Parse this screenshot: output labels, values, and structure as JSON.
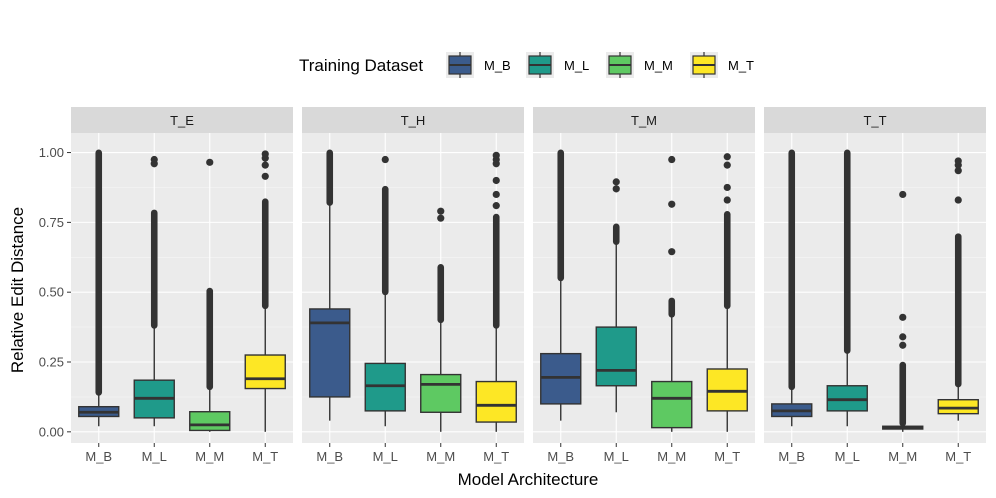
{
  "chart_data": {
    "type": "boxplot",
    "xlabel": "Model Architecture",
    "ylabel": "Relative Edit Distance",
    "ylim": [
      -0.04,
      1.07
    ],
    "yticks": [
      0.0,
      0.25,
      0.5,
      0.75,
      1.0
    ],
    "ytick_labels": [
      "0.00",
      "0.25",
      "0.50",
      "0.75",
      "1.00"
    ],
    "categories": [
      "M_B",
      "M_L",
      "M_M",
      "M_T"
    ],
    "legend": {
      "title": "Training Dataset",
      "position": "top",
      "entries": [
        "M_B",
        "M_L",
        "M_M",
        "M_T"
      ]
    },
    "colors": {
      "M_B": "#3b5b8c",
      "M_L": "#1f9a8a",
      "M_M": "#5ec962",
      "M_T": "#fde725"
    },
    "facets": [
      {
        "label": "T_E",
        "boxes": [
          {
            "category": "M_B",
            "whisker_low": 0.02,
            "q1": 0.055,
            "median": 0.07,
            "q3": 0.09,
            "whisker_high": 0.14,
            "outlier_band": [
              0.14,
              1.0
            ],
            "outliers": []
          },
          {
            "category": "M_L",
            "whisker_low": 0.02,
            "q1": 0.05,
            "median": 0.12,
            "q3": 0.185,
            "whisker_high": 0.38,
            "outlier_band": [
              0.38,
              0.785
            ],
            "outliers": [
              0.96,
              0.975
            ]
          },
          {
            "category": "M_M",
            "whisker_low": 0.0,
            "q1": 0.005,
            "median": 0.025,
            "q3": 0.072,
            "whisker_high": 0.16,
            "outlier_band": [
              0.16,
              0.505
            ],
            "outliers": [
              0.965
            ]
          },
          {
            "category": "M_T",
            "whisker_low": 0.0,
            "q1": 0.155,
            "median": 0.19,
            "q3": 0.275,
            "whisker_high": 0.45,
            "outlier_band": [
              0.45,
              0.825
            ],
            "outliers": [
              0.915,
              0.955,
              0.98,
              0.995
            ]
          }
        ]
      },
      {
        "label": "T_H",
        "boxes": [
          {
            "category": "M_B",
            "whisker_low": 0.04,
            "q1": 0.125,
            "median": 0.39,
            "q3": 0.44,
            "whisker_high": 0.82,
            "outlier_band": [
              0.82,
              1.0
            ],
            "outliers": []
          },
          {
            "category": "M_L",
            "whisker_low": 0.02,
            "q1": 0.075,
            "median": 0.165,
            "q3": 0.245,
            "whisker_high": 0.5,
            "outlier_band": [
              0.5,
              0.87
            ],
            "outliers": [
              0.975
            ]
          },
          {
            "category": "M_M",
            "whisker_low": 0.0,
            "q1": 0.07,
            "median": 0.17,
            "q3": 0.205,
            "whisker_high": 0.4,
            "outlier_band": [
              0.4,
              0.59
            ],
            "outliers": [
              0.765,
              0.79
            ]
          },
          {
            "category": "M_T",
            "whisker_low": 0.0,
            "q1": 0.035,
            "median": 0.095,
            "q3": 0.18,
            "whisker_high": 0.38,
            "outlier_band": [
              0.38,
              0.77
            ],
            "outliers": [
              0.81,
              0.85,
              0.9,
              0.96,
              0.975,
              0.99
            ]
          }
        ]
      },
      {
        "label": "T_M",
        "boxes": [
          {
            "category": "M_B",
            "whisker_low": 0.04,
            "q1": 0.1,
            "median": 0.195,
            "q3": 0.28,
            "whisker_high": 0.55,
            "outlier_band": [
              0.55,
              1.0
            ],
            "outliers": []
          },
          {
            "category": "M_L",
            "whisker_low": 0.07,
            "q1": 0.165,
            "median": 0.22,
            "q3": 0.375,
            "whisker_high": 0.68,
            "outlier_band": [
              0.68,
              0.735
            ],
            "outliers": [
              0.87,
              0.895
            ]
          },
          {
            "category": "M_M",
            "whisker_low": 0.0,
            "q1": 0.015,
            "median": 0.12,
            "q3": 0.18,
            "whisker_high": 0.42,
            "outlier_band": [
              0.42,
              0.47
            ],
            "outliers": [
              0.645,
              0.815,
              0.975
            ]
          },
          {
            "category": "M_T",
            "whisker_low": 0.0,
            "q1": 0.075,
            "median": 0.145,
            "q3": 0.225,
            "whisker_high": 0.45,
            "outlier_band": [
              0.45,
              0.78
            ],
            "outliers": [
              0.83,
              0.875,
              0.955,
              0.985
            ]
          }
        ]
      },
      {
        "label": "T_T",
        "boxes": [
          {
            "category": "M_B",
            "whisker_low": 0.02,
            "q1": 0.055,
            "median": 0.075,
            "q3": 0.1,
            "whisker_high": 0.16,
            "outlier_band": [
              0.16,
              1.0
            ],
            "outliers": []
          },
          {
            "category": "M_L",
            "whisker_low": 0.02,
            "q1": 0.075,
            "median": 0.115,
            "q3": 0.165,
            "whisker_high": 0.29,
            "outlier_band": [
              0.29,
              1.0
            ],
            "outliers": []
          },
          {
            "category": "M_M",
            "whisker_low": 0.0,
            "q1": 0.01,
            "median": 0.015,
            "q3": 0.02,
            "whisker_high": 0.03,
            "outlier_band": [
              0.03,
              0.24
            ],
            "outliers": [
              0.31,
              0.34,
              0.41,
              0.85
            ]
          },
          {
            "category": "M_T",
            "whisker_low": 0.04,
            "q1": 0.065,
            "median": 0.085,
            "q3": 0.115,
            "whisker_high": 0.17,
            "outlier_band": [
              0.17,
              0.7
            ],
            "outliers": [
              0.83,
              0.935,
              0.955,
              0.97
            ]
          }
        ]
      }
    ]
  }
}
